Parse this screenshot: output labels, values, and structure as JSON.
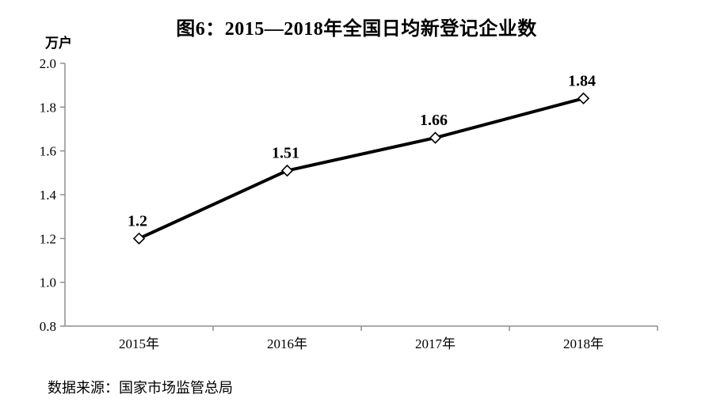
{
  "title": "图6：2015—2018年全国日均新登记企业数",
  "source_note": "数据来源：国家市场监管总局",
  "colors": {
    "axis": "#8f8f8f",
    "line": "#000000",
    "marker_fill": "#ffffff",
    "marker_stroke": "#000000",
    "text": "#000000"
  },
  "chart_data": {
    "type": "line",
    "title": "图6：2015—2018年全国日均新登记企业数",
    "ylabel": "万户",
    "xlabel": "",
    "categories": [
      "2015年",
      "2016年",
      "2017年",
      "2018年"
    ],
    "values": [
      1.2,
      1.51,
      1.66,
      1.84
    ],
    "point_labels": [
      "1.2",
      "1.51",
      "1.66",
      "1.84"
    ],
    "ylim": [
      0.8,
      2.0
    ],
    "ytick_step": 0.2,
    "ytick_labels": [
      "0.8",
      "1.0",
      "1.2",
      "1.4",
      "1.6",
      "1.8",
      "2.0"
    ],
    "grid": false,
    "legend": "none",
    "marker": "open-diamond",
    "source": "数据来源：国家市场监管总局"
  }
}
